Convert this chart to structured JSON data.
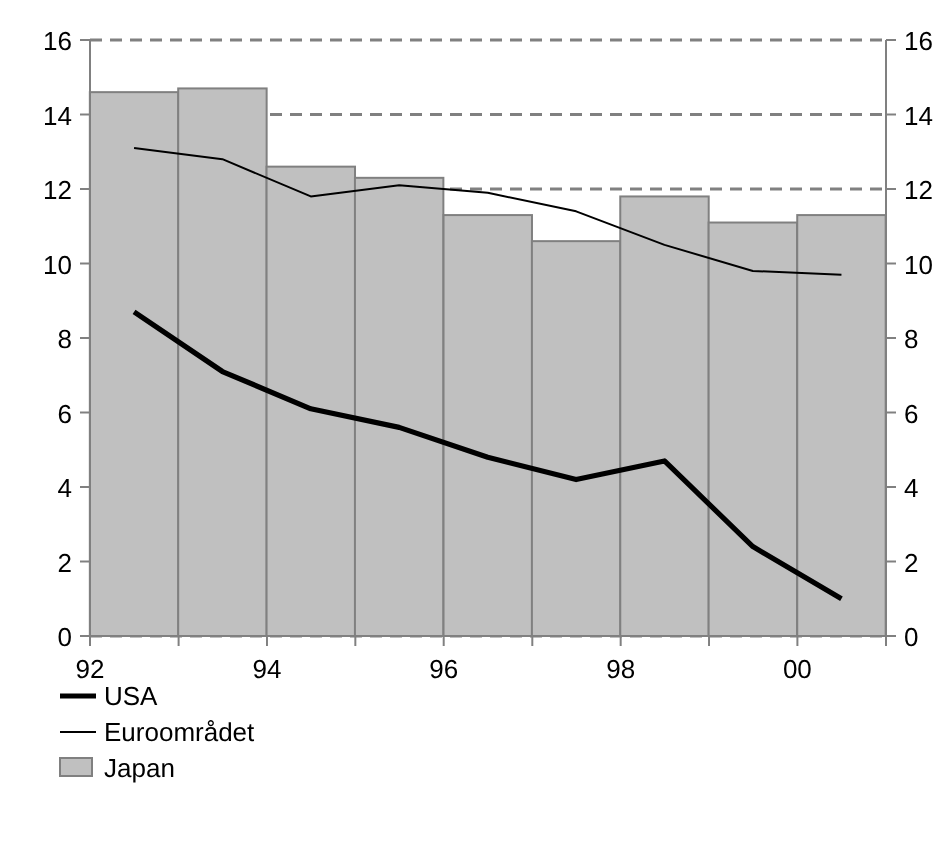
{
  "chart_data": {
    "type": "line",
    "xlim": [
      "1992",
      "2001"
    ],
    "xticks": [
      {
        "value": "1992",
        "label": "92"
      },
      {
        "value": "1993",
        "label": null
      },
      {
        "value": "1994",
        "label": "94"
      },
      {
        "value": "1995",
        "label": null
      },
      {
        "value": "1996",
        "label": "96"
      },
      {
        "value": "1997",
        "label": null
      },
      {
        "value": "1998",
        "label": "98"
      },
      {
        "value": "1999",
        "label": null
      },
      {
        "value": "2000",
        "label": "00"
      },
      {
        "value": "2001",
        "label": null
      }
    ],
    "x": [
      "1992-07",
      "1993-07",
      "1994-07",
      "1995-07",
      "1996-07",
      "1997-07",
      "1998-07",
      "1999-07",
      "2000-07"
    ],
    "ylim": [
      0,
      16
    ],
    "yticks": [
      0,
      2,
      4,
      6,
      8,
      10,
      12,
      14,
      16
    ],
    "y2lim": [
      0,
      16
    ],
    "y2ticks": [
      0,
      2,
      4,
      6,
      8,
      10,
      12,
      14,
      16
    ],
    "grid": "y",
    "legend": "bottom left",
    "series": [
      {
        "name": "USA",
        "color": "#000000",
        "values": [
          8.7,
          7.1,
          6.1,
          5.6,
          4.8,
          4.2,
          4.7,
          2.4,
          1.0
        ]
      },
      {
        "name": "Euroområdet",
        "color": "#000000",
        "values": [
          13.1,
          12.8,
          11.8,
          12.1,
          11.9,
          11.4,
          10.5,
          9.8,
          9.7
        ]
      },
      {
        "name": "Japan",
        "type": "bar",
        "color": "#c0c0c0",
        "values": [
          14.6,
          14.7,
          12.6,
          12.3,
          11.3,
          10.6,
          11.8,
          11.1,
          11.3
        ]
      }
    ]
  }
}
